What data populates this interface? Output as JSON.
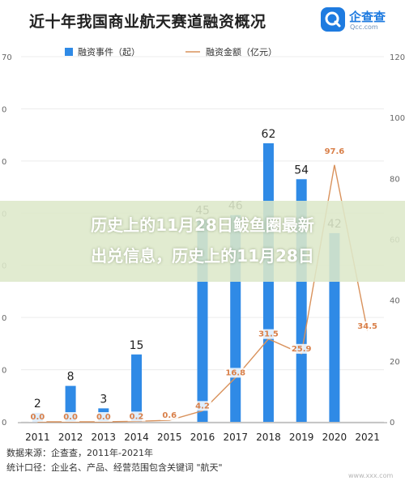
{
  "header": {
    "title": "近十年我国商业航天赛道融资概况",
    "logo_text": "企查查",
    "logo_sub": "Qcc.com"
  },
  "overlay": {
    "line1": "历史上的11月28日鲅鱼圈最新",
    "line2": "出兑信息，历史上的11月28日"
  },
  "footer": {
    "source": "数据来源：企查查，2011年-2021年",
    "method": "统计口径：企业名、产品、经营范围包含关键词 \"航天\""
  },
  "watermark": "www.xxx.com",
  "colors": {
    "bar": "#2f8ae6",
    "line": "#d9925c",
    "overlay": "#dde8ca"
  },
  "chart_data": {
    "type": "bar",
    "title": "近十年我国商业航天赛道融资概况",
    "categories": [
      "2011",
      "2012",
      "2013",
      "2014",
      "2015",
      "2016",
      "2017",
      "2018",
      "2019",
      "2020",
      "2021"
    ],
    "series": [
      {
        "name": "融资事件（起）",
        "type": "bar",
        "values": [
          2,
          8,
          3,
          15,
          null,
          45,
          46,
          62,
          54,
          42,
          null
        ]
      },
      {
        "name": "融资金额（亿元）",
        "type": "line",
        "values": [
          0.0,
          0.0,
          0.0,
          0.2,
          0.6,
          4.2,
          16.8,
          31.5,
          25.9,
          97.6,
          34.5
        ]
      }
    ],
    "left_ticks": [
      "70",
      "0",
      "0",
      "0",
      "0",
      "0",
      "0",
      "0"
    ],
    "right_ticks": [
      "120",
      "100",
      "80",
      "60",
      "40",
      "20",
      "0"
    ],
    "y_left_range": [
      0,
      70
    ],
    "y_right_range": [
      0,
      120
    ],
    "legend_position": "top",
    "grid": true
  }
}
